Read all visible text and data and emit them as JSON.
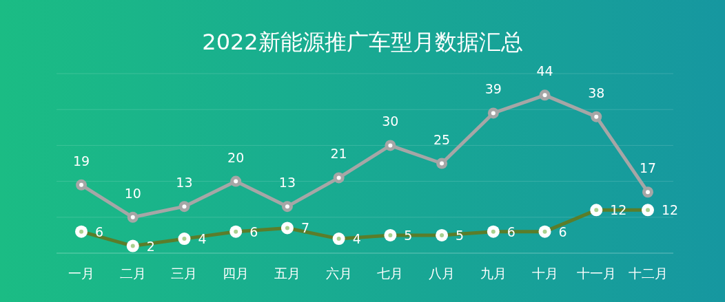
{
  "chart_data": {
    "type": "line",
    "title": "2022新能源推广车型月数据汇总",
    "categories": [
      "一月",
      "二月",
      "三月",
      "四月",
      "五月",
      "六月",
      "七月",
      "八月",
      "九月",
      "十月",
      "十一月",
      "十二月"
    ],
    "series": [
      {
        "color": "#a6a6a6",
        "values": [
          19,
          10,
          13,
          20,
          13,
          21,
          30,
          25,
          39,
          44,
          38,
          17
        ]
      },
      {
        "color": "#5b7d2a",
        "values": [
          6,
          2,
          4,
          6,
          7,
          4,
          5,
          5,
          6,
          6,
          12,
          12
        ]
      }
    ],
    "ylim": [
      0,
      50
    ],
    "yticks": [
      {
        "value": 0,
        "label": null
      },
      {
        "value": 10,
        "label": null
      },
      {
        "value": 20,
        "label": null
      },
      {
        "value": 30,
        "label": null
      },
      {
        "value": 40,
        "label": null
      },
      {
        "value": 50,
        "label": null
      }
    ],
    "grid": "y",
    "tick_labels": "x",
    "data_labels": true,
    "marker": "circle",
    "line_style": "solid"
  }
}
